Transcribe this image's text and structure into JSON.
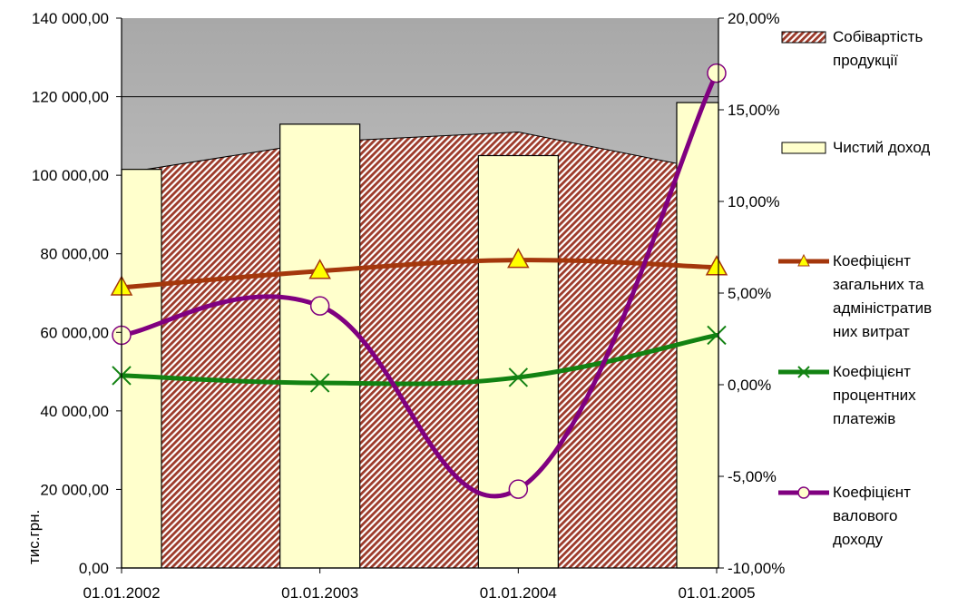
{
  "chart_data": {
    "type": "combo",
    "x": [
      "01.01.2002",
      "01.01.2003",
      "01.01.2004",
      "01.01.2005"
    ],
    "y_left": {
      "label": "тис.грн.",
      "min": 0,
      "max": 140000,
      "step": 20000,
      "ticks": [
        "0,00",
        "20 000,00",
        "40 000,00",
        "60 000,00",
        "80 000,00",
        "100 000,00",
        "120 000,00",
        "140 000,00"
      ]
    },
    "y_right": {
      "min": -10,
      "max": 20,
      "step": 5,
      "ticks": [
        "-10,00%",
        "-5,00%",
        "0,00%",
        "5,00%",
        "10,00%",
        "15,00%",
        "20,00%"
      ]
    },
    "gridlines": [
      120000
    ],
    "series": [
      {
        "name": "Собівартість продукції",
        "kind": "area",
        "axis": "left",
        "color": "#9c3a2a",
        "values": [
          100500,
          108500,
          111000,
          101000
        ]
      },
      {
        "name": "Чистий доход",
        "kind": "bar",
        "axis": "left",
        "color": "#ffffcc",
        "values": [
          101500,
          113000,
          105000,
          118500
        ]
      },
      {
        "name": "Коефіцієнт загальних та адміністратив них витрат",
        "kind": "line",
        "axis": "right",
        "color": "#a4370c",
        "marker": "triangle",
        "values": [
          5.3,
          6.2,
          6.8,
          6.4
        ]
      },
      {
        "name": "Коефіцієнт процентних платежів",
        "kind": "line",
        "axis": "right",
        "color": "#128212",
        "marker": "x",
        "values": [
          0.5,
          0.1,
          0.4,
          2.7
        ]
      },
      {
        "name": "Коефіцієнт валового доходу",
        "kind": "line",
        "axis": "right",
        "color": "#800080",
        "marker": "circle",
        "values": [
          2.7,
          4.3,
          -5.7,
          17.0
        ]
      }
    ],
    "legend": {
      "placement": "right",
      "entries": [
        [
          "Собівартість",
          "продукції"
        ],
        [
          "Чистий доход"
        ],
        [
          "Коефіцієнт",
          "загальних та",
          "адміністратив",
          "них витрат"
        ],
        [
          "Коефіцієнт",
          "процентних",
          "платежів"
        ],
        [
          "Коефіцієнт",
          "валового",
          "доходу"
        ]
      ]
    },
    "colors": {
      "plot_background": "#c0c0c0",
      "hatch_light": "#ffffff"
    }
  }
}
